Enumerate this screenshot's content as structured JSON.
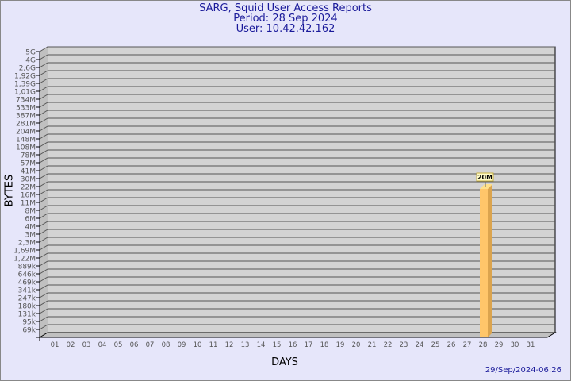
{
  "header": {
    "title": "SARG, Squid User Access Reports",
    "period": "Period: 28 Sep 2024",
    "user": "User: 10.42.42.162"
  },
  "footer": {
    "timestamp": "29/Sep/2024-06:26"
  },
  "chart_data": {
    "type": "bar",
    "title": "SARG, Squid User Access Reports",
    "xlabel": "DAYS",
    "ylabel": "BYTES",
    "y_scale": "log",
    "grid": true,
    "y_ticks": [
      "5G",
      "4G",
      "2,6G",
      "1,92G",
      "1,39G",
      "1,01G",
      "734M",
      "533M",
      "387M",
      "281M",
      "204M",
      "148M",
      "108M",
      "78M",
      "57M",
      "41M",
      "30M",
      "22M",
      "16M",
      "11M",
      "8M",
      "6M",
      "4M",
      "3M",
      "2,3M",
      "1,69M",
      "1,22M",
      "889k",
      "646k",
      "469k",
      "341k",
      "247k",
      "180k",
      "131k",
      "95k",
      "69k"
    ],
    "categories": [
      "01",
      "02",
      "03",
      "04",
      "05",
      "06",
      "07",
      "08",
      "09",
      "10",
      "11",
      "12",
      "13",
      "14",
      "15",
      "16",
      "17",
      "18",
      "19",
      "20",
      "21",
      "22",
      "23",
      "24",
      "25",
      "26",
      "27",
      "28",
      "29",
      "30",
      "31"
    ],
    "bars": [
      {
        "day": "28",
        "value": 20000000,
        "label": "20M"
      }
    ],
    "colors": {
      "bar_front": "#ffc66a",
      "bar_side": "#dba44e",
      "bar_top": "#ffe08a",
      "wall": "#d3d3d3",
      "background": "#e6e6fa"
    }
  }
}
